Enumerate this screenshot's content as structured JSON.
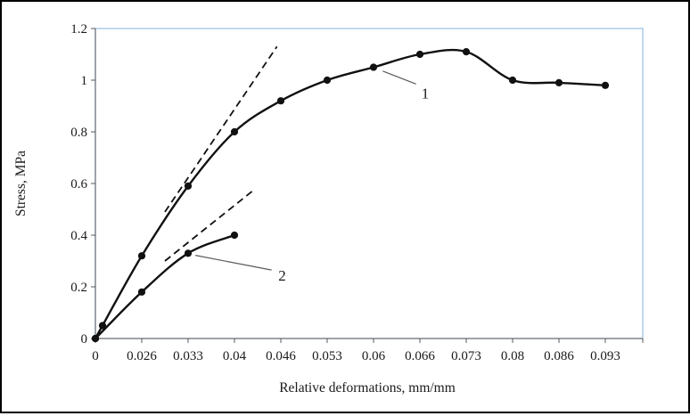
{
  "figure": {
    "background": "#ffffff",
    "border_color": "#000000",
    "plot_border_color": "#9dc3e6",
    "axis_color": "#595959",
    "line_color": "#111111",
    "leader_color": "#595959"
  },
  "chart_data": {
    "type": "line",
    "title": "",
    "xlabel": "Relative deformations, mm/mm",
    "ylabel": "Stress, MPa",
    "grid": false,
    "legend": "none",
    "ylim": [
      0,
      1.2
    ],
    "x_tick_values": [
      0,
      0.026,
      0.033,
      0.04,
      0.046,
      0.053,
      0.06,
      0.066,
      0.073,
      0.08,
      0.086,
      0.093
    ],
    "x_tick_labels": [
      "0",
      "0.026",
      "0.033",
      "0.04",
      "0.046",
      "0.053",
      "0.06",
      "0.066",
      "0.073",
      "0.08",
      "0.086",
      "0.093"
    ],
    "y_tick_values": [
      0,
      0.2,
      0.4,
      0.6,
      0.8,
      1,
      1.2
    ],
    "y_tick_labels": [
      "0",
      "0.2",
      "0.4",
      "0.6",
      "0.8",
      "1",
      "1.2"
    ],
    "series": [
      {
        "name": "1",
        "marker": "circle",
        "line_style": "solid",
        "points": [
          [
            0,
            0
          ],
          [
            0.004,
            0.05
          ],
          [
            0.026,
            0.32
          ],
          [
            0.033,
            0.59
          ],
          [
            0.04,
            0.8
          ],
          [
            0.046,
            0.92
          ],
          [
            0.053,
            1.0
          ],
          [
            0.06,
            1.05
          ],
          [
            0.066,
            1.1
          ],
          [
            0.073,
            1.11
          ],
          [
            0.08,
            1.0
          ],
          [
            0.086,
            0.99
          ],
          [
            0.093,
            0.98
          ]
        ]
      },
      {
        "name": "2",
        "marker": "circle",
        "line_style": "solid",
        "points": [
          [
            0,
            0
          ],
          [
            0.026,
            0.18
          ],
          [
            0.033,
            0.33
          ],
          [
            0.04,
            0.4
          ]
        ]
      }
    ],
    "tangent_lines": [
      {
        "style": "dashed",
        "from": [
          0.0295,
          0.49
        ],
        "to": [
          0.0455,
          1.13
        ]
      },
      {
        "style": "dashed",
        "from": [
          0.0295,
          0.3
        ],
        "to": [
          0.0425,
          0.575
        ]
      }
    ],
    "labels": [
      {
        "text": "1",
        "x": 0.0668,
        "y": 0.95,
        "leader": {
          "from": [
            0.0612,
            1.035
          ],
          "to": [
            0.0655,
            0.985
          ]
        }
      },
      {
        "text": "2",
        "x": 0.0462,
        "y": 0.245,
        "leader": {
          "from": [
            0.0341,
            0.322
          ],
          "to": [
            0.0448,
            0.265
          ]
        }
      }
    ]
  }
}
